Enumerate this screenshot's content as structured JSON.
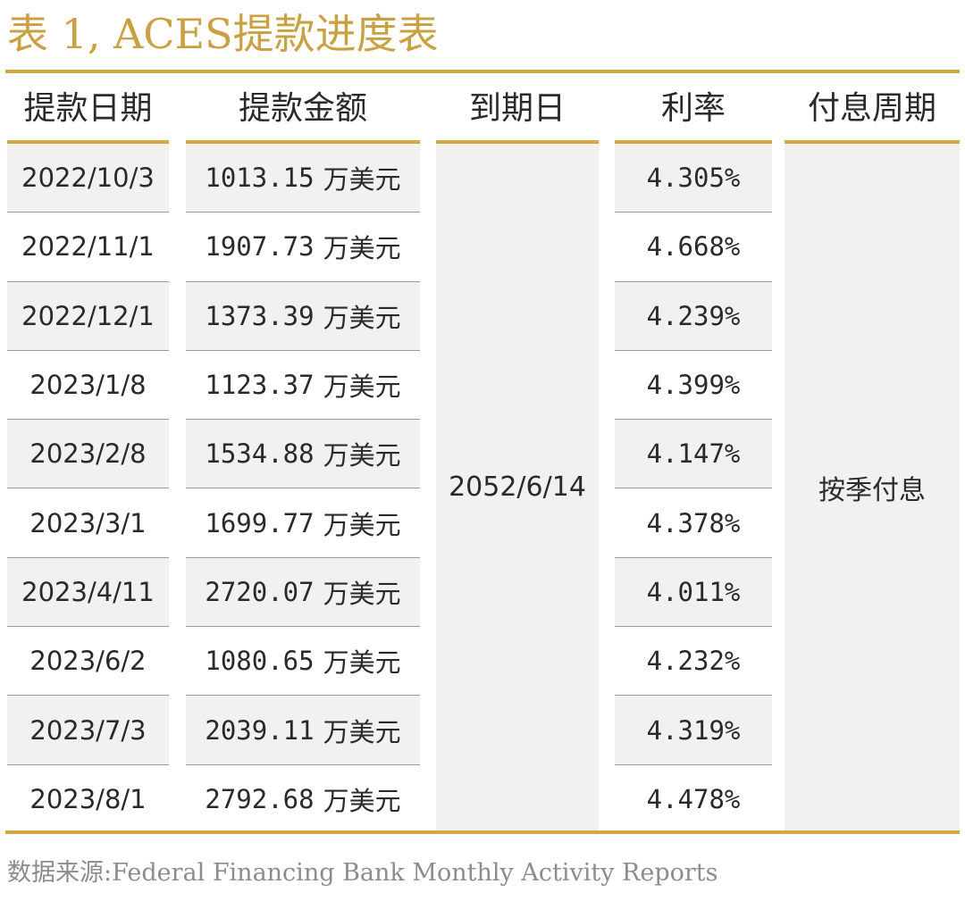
{
  "title": "表 1, ACES提款进度表",
  "headers": {
    "date": "提款日期",
    "amount": "提款金额",
    "maturity": "到期日",
    "rate": "利率",
    "frequency": "付息周期"
  },
  "rows": [
    {
      "date": "2022/10/3",
      "amount": "1013.15",
      "unit": "万美元",
      "rate": "4.305%"
    },
    {
      "date": "2022/11/1",
      "amount": "1907.73",
      "unit": "万美元",
      "rate": "4.668%"
    },
    {
      "date": "2022/12/1",
      "amount": "1373.39",
      "unit": "万美元",
      "rate": "4.239%"
    },
    {
      "date": "2023/1/8",
      "amount": "1123.37",
      "unit": "万美元",
      "rate": "4.399%"
    },
    {
      "date": "2023/2/8",
      "amount": "1534.88",
      "unit": "万美元",
      "rate": "4.147%"
    },
    {
      "date": "2023/3/1",
      "amount": "1699.77",
      "unit": "万美元",
      "rate": "4.378%"
    },
    {
      "date": "2023/4/11",
      "amount": "2720.07",
      "unit": "万美元",
      "rate": "4.011%"
    },
    {
      "date": "2023/6/2",
      "amount": "1080.65",
      "unit": "万美元",
      "rate": "4.232%"
    },
    {
      "date": "2023/7/3",
      "amount": "2039.11",
      "unit": "万美元",
      "rate": "4.319%"
    },
    {
      "date": "2023/8/1",
      "amount": "2792.68",
      "unit": "万美元",
      "rate": "4.478%"
    }
  ],
  "maturity_date": "2052/6/14",
  "payment_frequency": "按季付息",
  "source": "数据来源:Federal Financing Bank Monthly Activity Reports",
  "colors": {
    "accent": "#d4a843",
    "title": "#c9a042",
    "shade": "#f2f1f0",
    "source_text": "#8c8c8c"
  }
}
